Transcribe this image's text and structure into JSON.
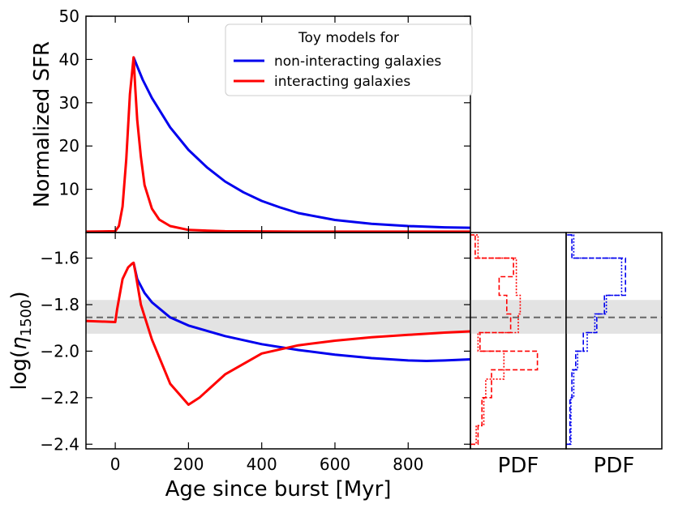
{
  "chart_data": [
    {
      "type": "line",
      "panel": "top",
      "ylabel": "Normalized SFR",
      "xlim": [
        -80,
        970
      ],
      "ylim": [
        0,
        50
      ],
      "yticks": [
        10,
        20,
        30,
        40,
        50
      ],
      "legend": {
        "title": "Toy models for",
        "placement": "top-right",
        "entries": [
          "non-interacting galaxies",
          "interacting galaxies"
        ]
      },
      "series": [
        {
          "name": "non-interacting galaxies",
          "color": "#0000ee",
          "x": [
            50,
            60,
            75,
            100,
            150,
            200,
            250,
            300,
            350,
            400,
            450,
            500,
            600,
            700,
            800,
            900,
            970
          ],
          "y": [
            40.5,
            38.4,
            35.3,
            31.1,
            24.3,
            19.1,
            15.1,
            11.8,
            9.3,
            7.3,
            5.8,
            4.5,
            2.9,
            2.0,
            1.5,
            1.2,
            1.1
          ]
        },
        {
          "name": "interacting galaxies",
          "color": "#ff0000",
          "x": [
            -80,
            0,
            10,
            20,
            30,
            40,
            50,
            55,
            60,
            70,
            80,
            100,
            120,
            150,
            200,
            300,
            500,
            970
          ],
          "y": [
            0.2,
            0.3,
            1.5,
            6,
            17,
            32,
            40.5,
            33,
            26,
            17.5,
            11,
            5.5,
            3,
            1.5,
            0.6,
            0.3,
            0.2,
            0.2
          ]
        }
      ]
    },
    {
      "type": "line",
      "panel": "bottom",
      "xlabel": "Age since burst [Myr]",
      "ylabel": "log(η1500)",
      "ylabel_main": "log(",
      "ylabel_symbol": "η",
      "ylabel_sub": "1500",
      "ylabel_close": ")",
      "xlim": [
        -80,
        970
      ],
      "ylim": [
        -2.42,
        -1.49
      ],
      "xticks": [
        0,
        200,
        400,
        600,
        800
      ],
      "yticks": [
        -1.6,
        -1.8,
        -2.0,
        -2.2,
        -2.4
      ],
      "ytick_labels": [
        "−1.6",
        "−1.8",
        "−2.0",
        "−2.2",
        "−2.4"
      ],
      "reference_line": {
        "y": -1.855,
        "style": "dashed",
        "color": "#666666"
      },
      "band": {
        "ymin": -1.925,
        "ymax": -1.78,
        "color": "#e3e3e3"
      },
      "series": [
        {
          "name": "non-interacting galaxies",
          "color": "#0000ee",
          "x": [
            50,
            60,
            80,
            100,
            150,
            200,
            300,
            400,
            500,
            600,
            700,
            800,
            850,
            900,
            970
          ],
          "y": [
            -1.62,
            -1.69,
            -1.75,
            -1.79,
            -1.855,
            -1.89,
            -1.935,
            -1.97,
            -1.995,
            -2.015,
            -2.03,
            -2.04,
            -2.042,
            -2.04,
            -2.035
          ]
        },
        {
          "name": "interacting galaxies",
          "color": "#ff0000",
          "x": [
            -80,
            0,
            5,
            20,
            35,
            45,
            50,
            55,
            70,
            100,
            150,
            200,
            230,
            300,
            400,
            500,
            600,
            700,
            800,
            900,
            970
          ],
          "y": [
            -1.87,
            -1.875,
            -1.82,
            -1.69,
            -1.64,
            -1.625,
            -1.62,
            -1.66,
            -1.8,
            -1.95,
            -2.14,
            -2.23,
            -2.2,
            -2.1,
            -2.01,
            -1.975,
            -1.955,
            -1.94,
            -1.93,
            -1.92,
            -1.915
          ]
        }
      ]
    },
    {
      "type": "histogram",
      "panel": "pdf-red",
      "xlabel": "PDF",
      "orientation": "horizontal",
      "color": "#ff0000",
      "xlim": [
        0,
        1
      ],
      "ylim": [
        -2.42,
        -1.49
      ],
      "series": [
        {
          "name": "dashed",
          "bins": [
            {
              "lo": -2.4,
              "hi": -2.32,
              "w": 0.08
            },
            {
              "lo": -2.32,
              "hi": -2.2,
              "w": 0.12
            },
            {
              "lo": -2.2,
              "hi": -2.08,
              "w": 0.22
            },
            {
              "lo": -2.08,
              "hi": -2.0,
              "w": 0.7
            },
            {
              "lo": -2.0,
              "hi": -1.92,
              "w": 0.1
            },
            {
              "lo": -1.92,
              "hi": -1.84,
              "w": 0.42
            },
            {
              "lo": -1.84,
              "hi": -1.76,
              "w": 0.38
            },
            {
              "lo": -1.76,
              "hi": -1.68,
              "w": 0.3
            },
            {
              "lo": -1.68,
              "hi": -1.6,
              "w": 0.45
            },
            {
              "lo": -1.6,
              "hi": -1.5,
              "w": 0.05
            }
          ]
        },
        {
          "name": "dotted",
          "bins": [
            {
              "lo": -2.4,
              "hi": -2.32,
              "w": 0.06
            },
            {
              "lo": -2.32,
              "hi": -2.2,
              "w": 0.14
            },
            {
              "lo": -2.2,
              "hi": -2.12,
              "w": 0.16
            },
            {
              "lo": -2.12,
              "hi": -2.0,
              "w": 0.35
            },
            {
              "lo": -2.0,
              "hi": -1.92,
              "w": 0.08
            },
            {
              "lo": -1.92,
              "hi": -1.84,
              "w": 0.5
            },
            {
              "lo": -1.84,
              "hi": -1.76,
              "w": 0.52
            },
            {
              "lo": -1.76,
              "hi": -1.6,
              "w": 0.48
            },
            {
              "lo": -1.6,
              "hi": -1.5,
              "w": 0.08
            }
          ]
        }
      ]
    },
    {
      "type": "histogram",
      "panel": "pdf-blue",
      "xlabel": "PDF",
      "orientation": "horizontal",
      "color": "#0000ee",
      "xlim": [
        0,
        1
      ],
      "ylim": [
        -2.42,
        -1.49
      ],
      "series": [
        {
          "name": "dashed",
          "bins": [
            {
              "lo": -2.4,
              "hi": -2.2,
              "w": 0.04
            },
            {
              "lo": -2.2,
              "hi": -2.08,
              "w": 0.06
            },
            {
              "lo": -2.08,
              "hi": -2.0,
              "w": 0.1
            },
            {
              "lo": -2.0,
              "hi": -1.92,
              "w": 0.18
            },
            {
              "lo": -1.92,
              "hi": -1.84,
              "w": 0.32
            },
            {
              "lo": -1.84,
              "hi": -1.76,
              "w": 0.4
            },
            {
              "lo": -1.76,
              "hi": -1.6,
              "w": 0.62
            },
            {
              "lo": -1.6,
              "hi": -1.5,
              "w": 0.06
            }
          ]
        },
        {
          "name": "dotted",
          "bins": [
            {
              "lo": -2.4,
              "hi": -2.2,
              "w": 0.05
            },
            {
              "lo": -2.2,
              "hi": -2.08,
              "w": 0.08
            },
            {
              "lo": -2.08,
              "hi": -2.0,
              "w": 0.12
            },
            {
              "lo": -2.0,
              "hi": -1.92,
              "w": 0.22
            },
            {
              "lo": -1.92,
              "hi": -1.84,
              "w": 0.3
            },
            {
              "lo": -1.84,
              "hi": -1.76,
              "w": 0.42
            },
            {
              "lo": -1.76,
              "hi": -1.6,
              "w": 0.58
            },
            {
              "lo": -1.6,
              "hi": -1.5,
              "w": 0.08
            }
          ]
        }
      ]
    }
  ]
}
